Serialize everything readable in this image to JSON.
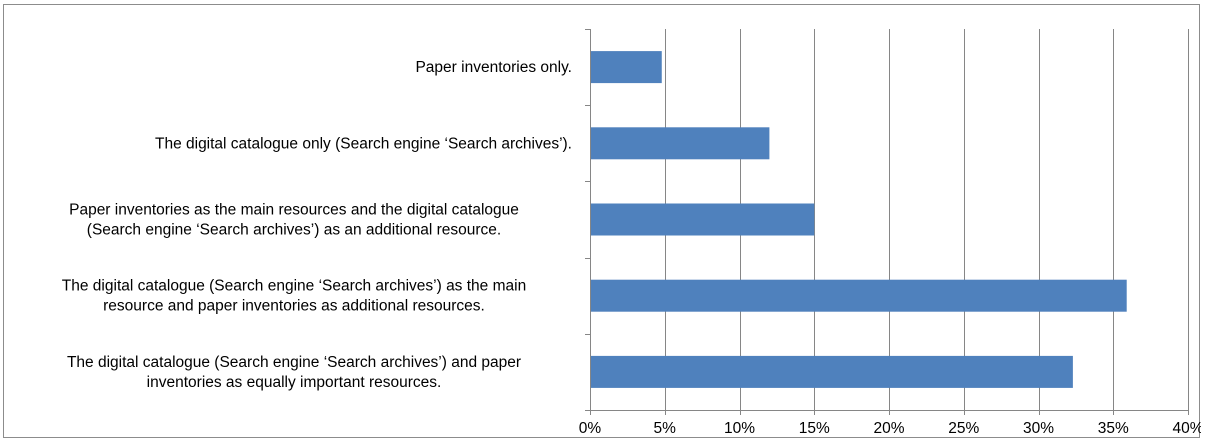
{
  "chart_data": {
    "type": "bar",
    "orientation": "horizontal",
    "title": "",
    "xlabel": "",
    "ylabel": "",
    "xlim": [
      0,
      40
    ],
    "x_ticks": [
      "0%",
      "5%",
      "10%",
      "15%",
      "20%",
      "25%",
      "30%",
      "35%",
      "40%"
    ],
    "tick_step": 5,
    "grid": "vertical",
    "legend": "none",
    "bar_color": "#4F81BD",
    "grid_color": "#868686",
    "categories": [
      [
        "Paper inventories only."
      ],
      [
        "The digital catalogue only (Search engine ‘Search archives’)."
      ],
      [
        "Paper inventories as the main resources and the digital catalogue",
        "(Search engine ‘Search archives’) as an additional resource."
      ],
      [
        "The digital catalogue (Search engine ‘Search archives’) as the main",
        "resource and paper inventories as additional resources."
      ],
      [
        "The digital catalogue (Search engine ‘Search archives’) and paper",
        "inventories as equally important resources."
      ]
    ],
    "values": [
      4.8,
      12.0,
      15.0,
      35.9,
      32.3
    ]
  }
}
